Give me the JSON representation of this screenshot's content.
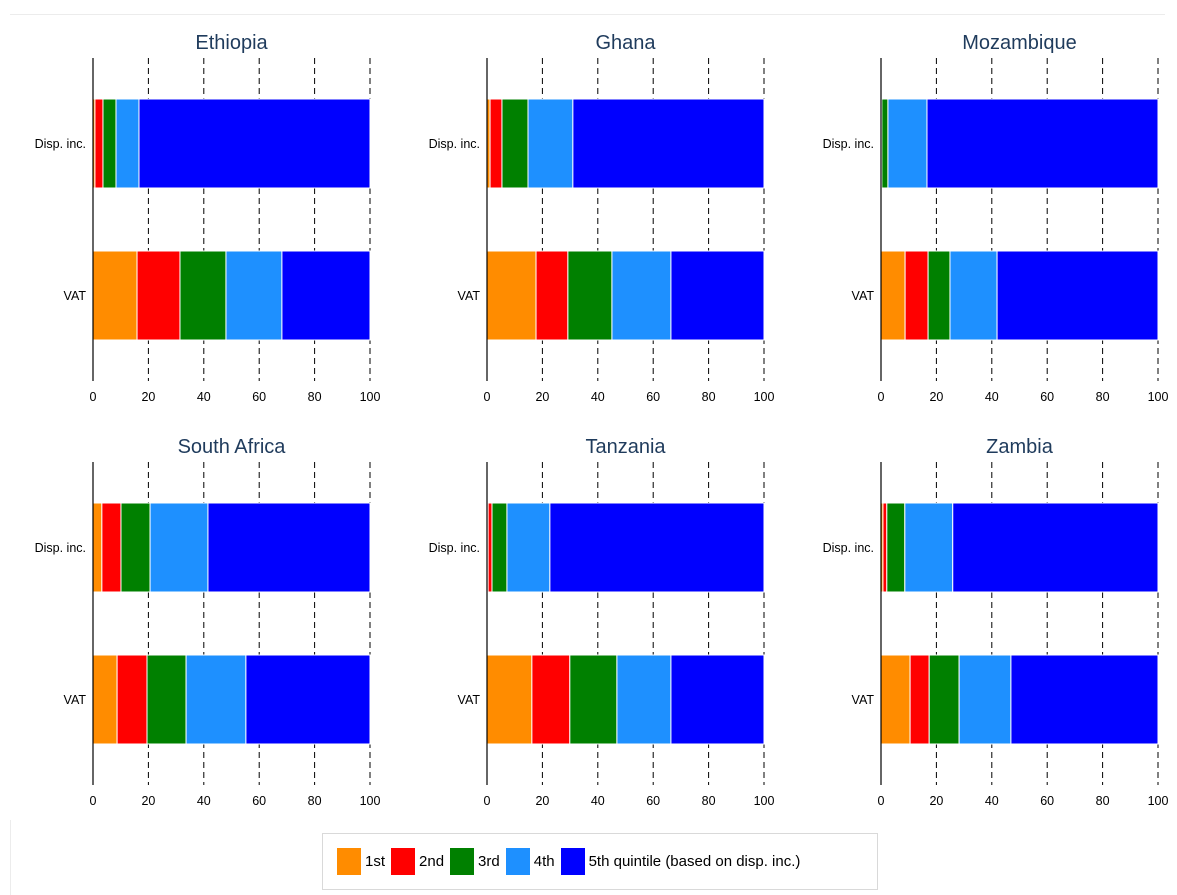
{
  "legend": {
    "position": "bottom",
    "items": [
      {
        "label": "1st",
        "color": "#FF8C00"
      },
      {
        "label": "2nd",
        "color": "#FF0000"
      },
      {
        "label": "3rd",
        "color": "#008000"
      },
      {
        "label": "4th",
        "color": "#1E90FF"
      },
      {
        "label": "5th quintile (based on disp. inc.)",
        "color": "#0000FF"
      }
    ]
  },
  "chart_data": [
    {
      "type": "bar",
      "orientation": "horizontal",
      "stacked": true,
      "title": "Ethiopia",
      "categories": [
        "Disp. inc.",
        "VAT"
      ],
      "series": [
        {
          "values": [
            0.7,
            15.9
          ]
        },
        {
          "values": [
            2.9,
            15.5
          ]
        },
        {
          "values": [
            4.7,
            16.6
          ]
        },
        {
          "values": [
            8.3,
            20.2
          ]
        },
        {
          "values": [
            83.4,
            31.8
          ]
        }
      ],
      "xlim": [
        0,
        100
      ],
      "xticks": [
        0,
        20,
        40,
        60,
        80,
        100
      ],
      "grid": true
    },
    {
      "type": "bar",
      "orientation": "horizontal",
      "stacked": true,
      "title": "Ghana",
      "categories": [
        "Disp. inc.",
        "VAT"
      ],
      "series": [
        {
          "values": [
            1.1,
            17.7
          ]
        },
        {
          "values": [
            4.3,
            11.5
          ]
        },
        {
          "values": [
            9.4,
            15.9
          ]
        },
        {
          "values": [
            16.2,
            21.3
          ]
        },
        {
          "values": [
            69.0,
            33.6
          ]
        }
      ],
      "xlim": [
        0,
        100
      ],
      "xticks": [
        0,
        20,
        40,
        60,
        80,
        100
      ],
      "grid": true
    },
    {
      "type": "bar",
      "orientation": "horizontal",
      "stacked": true,
      "title": "Mozambique",
      "categories": [
        "Disp. inc.",
        "VAT"
      ],
      "series": [
        {
          "values": [
            0.1,
            8.7
          ]
        },
        {
          "values": [
            0.2,
            8.3
          ]
        },
        {
          "values": [
            2.2,
            7.9
          ]
        },
        {
          "values": [
            14.1,
            17.0
          ]
        },
        {
          "values": [
            83.4,
            58.1
          ]
        }
      ],
      "xlim": [
        0,
        100
      ],
      "xticks": [
        0,
        20,
        40,
        60,
        80,
        100
      ],
      "grid": true
    },
    {
      "type": "bar",
      "orientation": "horizontal",
      "stacked": true,
      "title": "South Africa",
      "categories": [
        "Disp. inc.",
        "VAT"
      ],
      "series": [
        {
          "values": [
            3.2,
            8.7
          ]
        },
        {
          "values": [
            6.9,
            10.8
          ]
        },
        {
          "values": [
            10.5,
            14.1
          ]
        },
        {
          "values": [
            20.9,
            21.6
          ]
        },
        {
          "values": [
            58.5,
            44.8
          ]
        }
      ],
      "xlim": [
        0,
        100
      ],
      "xticks": [
        0,
        20,
        40,
        60,
        80,
        100
      ],
      "grid": true
    },
    {
      "type": "bar",
      "orientation": "horizontal",
      "stacked": true,
      "title": "Tanzania",
      "categories": [
        "Disp. inc.",
        "VAT"
      ],
      "series": [
        {
          "values": [
            0.4,
            16.2
          ]
        },
        {
          "values": [
            1.4,
            13.7
          ]
        },
        {
          "values": [
            5.4,
            17.0
          ]
        },
        {
          "values": [
            15.5,
            19.5
          ]
        },
        {
          "values": [
            77.3,
            33.6
          ]
        }
      ],
      "xlim": [
        0,
        100
      ],
      "xticks": [
        0,
        20,
        40,
        60,
        80,
        100
      ],
      "grid": true
    },
    {
      "type": "bar",
      "orientation": "horizontal",
      "stacked": true,
      "title": "Zambia",
      "categories": [
        "Disp. inc.",
        "VAT"
      ],
      "series": [
        {
          "values": [
            0.7,
            10.5
          ]
        },
        {
          "values": [
            1.4,
            6.9
          ]
        },
        {
          "values": [
            6.5,
            10.8
          ]
        },
        {
          "values": [
            17.3,
            18.7
          ]
        },
        {
          "values": [
            74.1,
            53.1
          ]
        }
      ],
      "xlim": [
        0,
        100
      ],
      "xticks": [
        0,
        20,
        40,
        60,
        80,
        100
      ],
      "grid": true
    }
  ]
}
